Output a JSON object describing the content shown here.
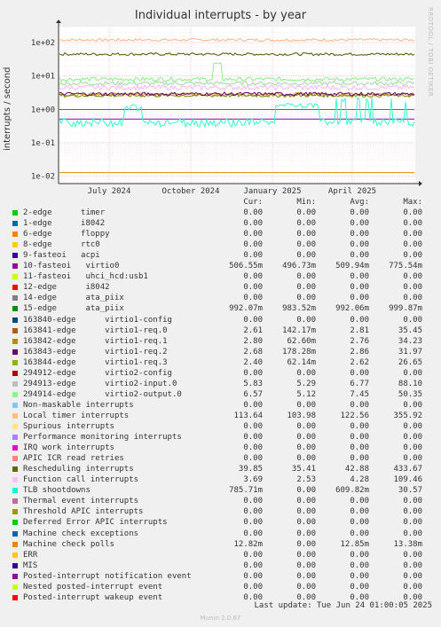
{
  "title": "Individual interrupts - by year",
  "side_label": "RRDTOOL / TOBI OETIKER",
  "footer": "Last update: Tue Jun 24 01:00:05 2025",
  "munin": "Munin 2.0.67",
  "chart_data": {
    "type": "line",
    "title": "Individual interrupts - by year",
    "ylabel": "interrupts / second",
    "yscale": "log",
    "ylim": [
      0.006,
      300
    ],
    "yticks": [
      "1e-02",
      "1e-01",
      "1e+00",
      "1e+01",
      "1e+02"
    ],
    "xticks": [
      "July 2024",
      "October 2024",
      "January 2025",
      "April 2025"
    ],
    "grid": true,
    "series": [
      {
        "name": "Local timer interrupts",
        "color": "#ffb27f",
        "level": 120,
        "noise": 0.08
      },
      {
        "name": "Rescheduling interrupts",
        "color": "#4d5500",
        "level": 45,
        "noise": 0.08
      },
      {
        "name": "294914-edge",
        "color": "#88ee88",
        "level": 8,
        "noise": 0.12
      },
      {
        "name": "294913-edge",
        "color": "#a4d7a4",
        "level": 6,
        "noise": 0.12
      },
      {
        "name": "Function call interrupts",
        "color": "#f8b6f8",
        "level": 4.5,
        "noise": 0.15
      },
      {
        "name": "163842-edge",
        "color": "#cc9900",
        "level": 2.8,
        "noise": 0.1
      },
      {
        "name": "163844-edge",
        "color": "#778800",
        "level": 2.6,
        "noise": 0.1
      },
      {
        "name": "163843-edge",
        "color": "#660066",
        "level": 2.9,
        "noise": 0.1
      },
      {
        "name": "15-edge",
        "color": "#00aa00",
        "level": 0.99,
        "noise": 0.0
      },
      {
        "name": "10-fasteoi",
        "color": "#8800aa",
        "level": 0.51,
        "noise": 0.0
      },
      {
        "name": "TLB shootdowns",
        "color": "#33ffcc",
        "level": 0.5,
        "noise": 0.6
      },
      {
        "name": "Machine check polls",
        "color": "#ee8800",
        "level": 0.0128,
        "noise": 0.0
      }
    ]
  },
  "legend": {
    "columns": [
      "Cur:",
      "Min:",
      "Avg:",
      "Max:"
    ],
    "rows": [
      {
        "label": "2-edge      timer",
        "color": "#00cc00",
        "cur": "0.00",
        "min": "0.00",
        "avg": "0.00",
        "max": "0.00"
      },
      {
        "label": "1-edge      i8042",
        "color": "#0066b3",
        "cur": "0.00",
        "min": "0.00",
        "avg": "0.00",
        "max": "0.00"
      },
      {
        "label": "6-edge      floppy",
        "color": "#ff8000",
        "cur": "0.00",
        "min": "0.00",
        "avg": "0.00",
        "max": "0.00"
      },
      {
        "label": "8-edge      rtc0",
        "color": "#ffcc00",
        "cur": "0.00",
        "min": "0.00",
        "avg": "0.00",
        "max": "0.00"
      },
      {
        "label": "9-fasteoi   acpi",
        "color": "#330099",
        "cur": "0.00",
        "min": "0.00",
        "avg": "0.00",
        "max": "0.00"
      },
      {
        "label": "10-fasteoi   virtio0",
        "color": "#990099",
        "cur": "506.55m",
        "min": "496.73m",
        "avg": "509.94m",
        "max": "775.54m"
      },
      {
        "label": "11-fasteoi   uhci_hcd:usb1",
        "color": "#ccff00",
        "cur": "0.00",
        "min": "0.00",
        "avg": "0.00",
        "max": "0.00"
      },
      {
        "label": "12-edge      i8042",
        "color": "#ff0000",
        "cur": "0.00",
        "min": "0.00",
        "avg": "0.00",
        "max": "0.00"
      },
      {
        "label": "14-edge      ata_piix",
        "color": "#808080",
        "cur": "0.00",
        "min": "0.00",
        "avg": "0.00",
        "max": "0.00"
      },
      {
        "label": "15-edge      ata_piix",
        "color": "#008f00",
        "cur": "992.07m",
        "min": "983.52m",
        "avg": "992.06m",
        "max": "999.87m"
      },
      {
        "label": "163840-edge      virtio1-config",
        "color": "#00487d",
        "cur": "0.00",
        "min": "0.00",
        "avg": "0.00",
        "max": "0.00"
      },
      {
        "label": "163841-edge      virtio1-req.0",
        "color": "#b35a00",
        "cur": "2.61",
        "min": "142.17m",
        "avg": "2.81",
        "max": "35.45"
      },
      {
        "label": "163842-edge      virtio1-req.1",
        "color": "#b38f00",
        "cur": "2.80",
        "min": "62.60m",
        "avg": "2.76",
        "max": "34.23"
      },
      {
        "label": "163843-edge      virtio1-req.2",
        "color": "#6b006b",
        "cur": "2.68",
        "min": "178.28m",
        "avg": "2.86",
        "max": "31.97"
      },
      {
        "label": "163844-edge      virtio1-req.3",
        "color": "#8fb300",
        "cur": "2.40",
        "min": "62.14m",
        "avg": "2.62",
        "max": "26.65"
      },
      {
        "label": "294912-edge      virtio2-config",
        "color": "#b30000",
        "cur": "0.00",
        "min": "0.00",
        "avg": "0.00",
        "max": "0.00"
      },
      {
        "label": "294913-edge      virtio2-input.0",
        "color": "#bebebe",
        "cur": "5.83",
        "min": "5.29",
        "avg": "6.77",
        "max": "88.10"
      },
      {
        "label": "294914-edge      virtio2-output.0",
        "color": "#80ff80",
        "cur": "6.57",
        "min": "5.12",
        "avg": "7.45",
        "max": "50.35"
      },
      {
        "label": "Non-maskable interrupts",
        "color": "#80c9ff",
        "cur": "0.00",
        "min": "0.00",
        "avg": "0.00",
        "max": "0.00"
      },
      {
        "label": "Local timer interrupts",
        "color": "#ffc080",
        "cur": "113.64",
        "min": "103.98",
        "avg": "122.56",
        "max": "355.92"
      },
      {
        "label": "Spurious interrupts",
        "color": "#ffe680",
        "cur": "0.00",
        "min": "0.00",
        "avg": "0.00",
        "max": "0.00"
      },
      {
        "label": "Performance monitoring interrupts",
        "color": "#aa80ff",
        "cur": "0.00",
        "min": "0.00",
        "avg": "0.00",
        "max": "0.00"
      },
      {
        "label": "IRQ work interrupts",
        "color": "#ee00cc",
        "cur": "0.00",
        "min": "0.00",
        "avg": "0.00",
        "max": "0.00"
      },
      {
        "label": "APIC ICR read retries",
        "color": "#ff8080",
        "cur": "0.00",
        "min": "0.00",
        "avg": "0.00",
        "max": "0.00"
      },
      {
        "label": "Rescheduling interrupts",
        "color": "#666600",
        "cur": "39.85",
        "min": "35.41",
        "avg": "42.88",
        "max": "433.67"
      },
      {
        "label": "Function call interrupts",
        "color": "#ffbfff",
        "cur": "3.69",
        "min": "2.53",
        "avg": "4.28",
        "max": "109.46"
      },
      {
        "label": "TLB shootdowns",
        "color": "#00ffcc",
        "cur": "785.71m",
        "min": "0.00",
        "avg": "609.82m",
        "max": "30.57"
      },
      {
        "label": "Thermal event interrupts",
        "color": "#cc6699",
        "cur": "0.00",
        "min": "0.00",
        "avg": "0.00",
        "max": "0.00"
      },
      {
        "label": "Threshold APIC interrupts",
        "color": "#999900",
        "cur": "0.00",
        "min": "0.00",
        "avg": "0.00",
        "max": "0.00"
      },
      {
        "label": "Deferred Error APIC interrupts",
        "color": "#00cc00",
        "cur": "0.00",
        "min": "0.00",
        "avg": "0.00",
        "max": "0.00"
      },
      {
        "label": "Machine check exceptions",
        "color": "#0066b3",
        "cur": "0.00",
        "min": "0.00",
        "avg": "0.00",
        "max": "0.00"
      },
      {
        "label": "Machine check polls",
        "color": "#ff8000",
        "cur": "12.82m",
        "min": "0.00",
        "avg": "12.85m",
        "max": "13.38m"
      },
      {
        "label": "ERR",
        "color": "#ffcc00",
        "cur": "0.00",
        "min": "0.00",
        "avg": "0.00",
        "max": "0.00"
      },
      {
        "label": "MIS",
        "color": "#330099",
        "cur": "0.00",
        "min": "0.00",
        "avg": "0.00",
        "max": "0.00"
      },
      {
        "label": "Posted-interrupt notification event",
        "color": "#990099",
        "cur": "0.00",
        "min": "0.00",
        "avg": "0.00",
        "max": "0.00"
      },
      {
        "label": "Nested posted-interrupt event",
        "color": "#ccff00",
        "cur": "0.00",
        "min": "0.00",
        "avg": "0.00",
        "max": "0.00"
      },
      {
        "label": "Posted-interrupt wakeup event",
        "color": "#ff0000",
        "cur": "0.00",
        "min": "0.00",
        "avg": "0.00",
        "max": "0.00"
      }
    ]
  }
}
